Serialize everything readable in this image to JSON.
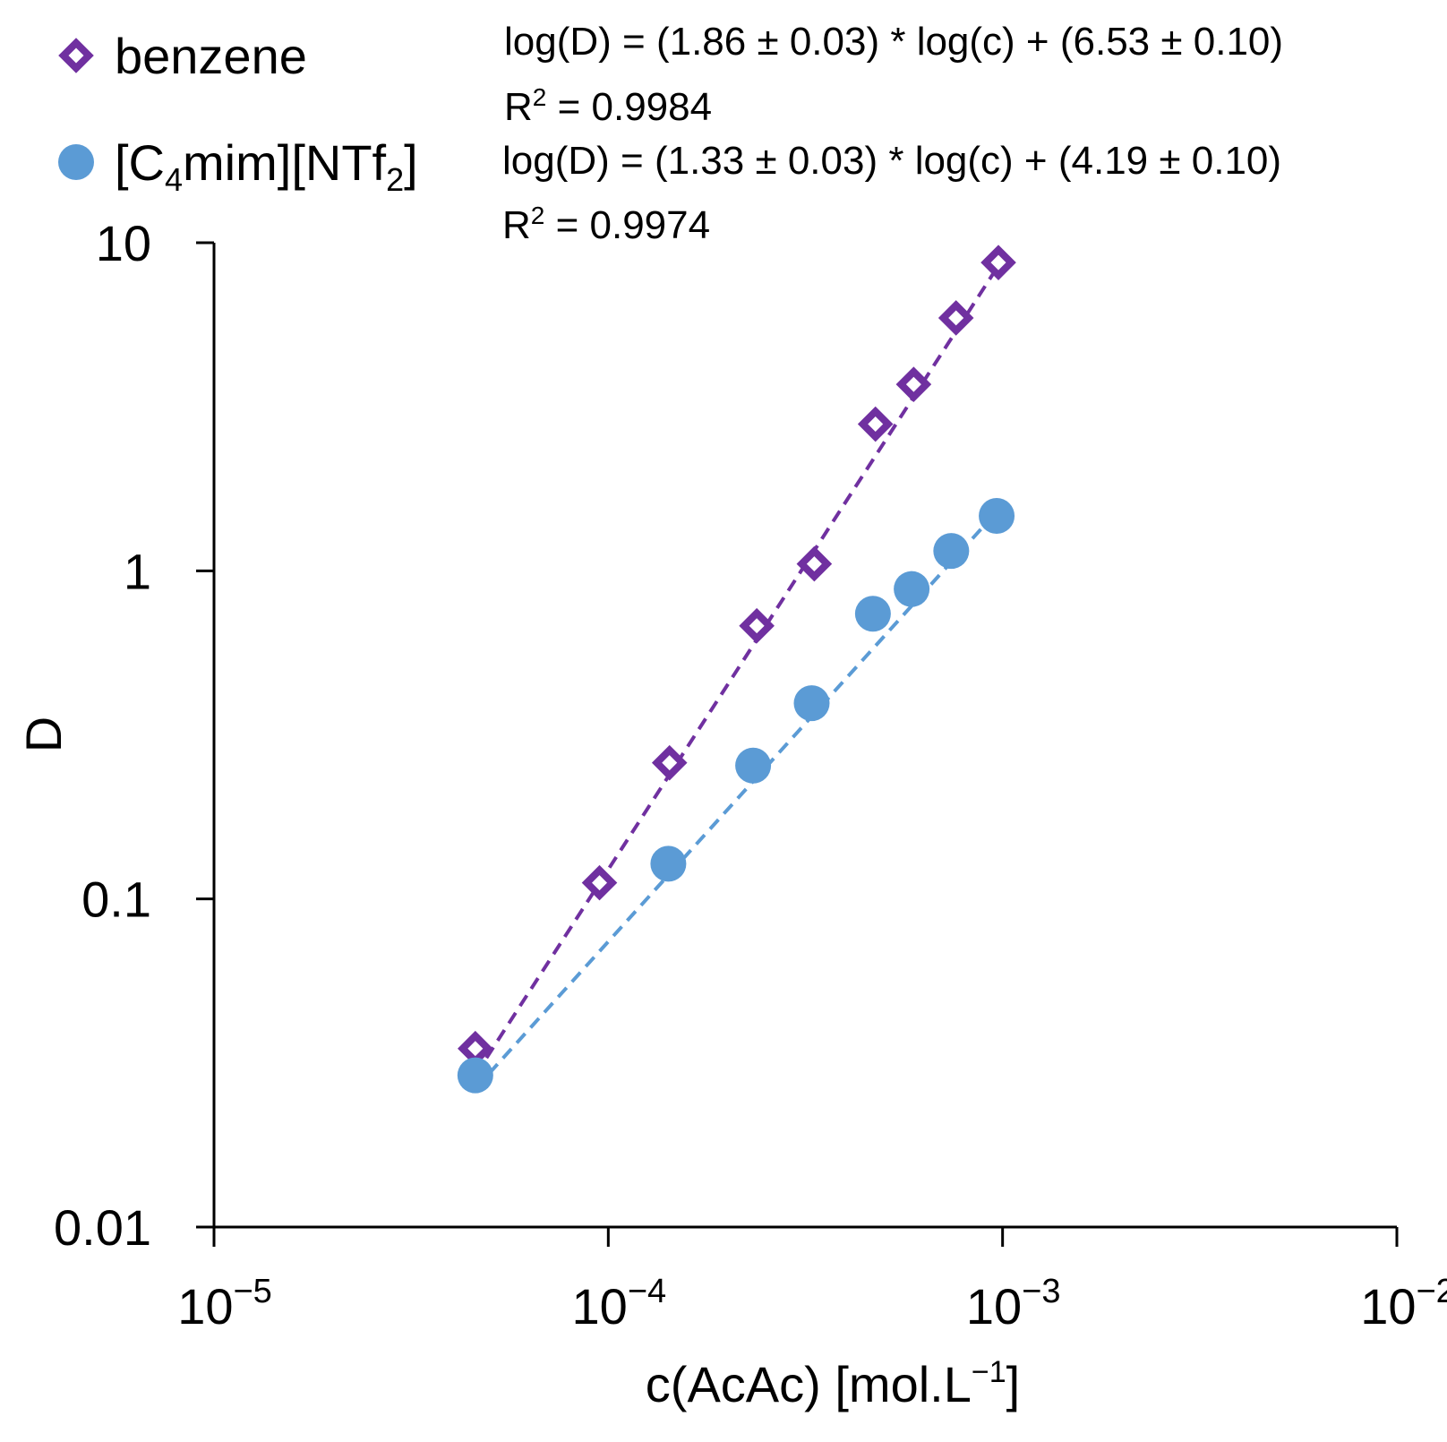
{
  "chart_data": {
    "type": "scatter",
    "xscale": "log",
    "yscale": "log",
    "xlabel": "c(AcAc) [mol.L",
    "xlabel_sup": "−1",
    "xlabel_end": "]",
    "ylabel": "D",
    "xlim": [
      1e-05,
      0.01
    ],
    "ylim": [
      0.01,
      10
    ],
    "x_ticks": [
      {
        "value": 1e-05,
        "base": "10",
        "exp": "−5"
      },
      {
        "value": 0.0001,
        "base": "10",
        "exp": "−4"
      },
      {
        "value": 0.001,
        "base": "10",
        "exp": "−3"
      },
      {
        "value": 0.01,
        "base": "10",
        "exp": "−2"
      }
    ],
    "y_ticks": [
      {
        "value": 0.01,
        "label": "0.01"
      },
      {
        "value": 0.1,
        "label": "0.1"
      },
      {
        "value": 1,
        "label": "1"
      },
      {
        "value": 10,
        "label": "10"
      }
    ],
    "series": [
      {
        "name": "benzene",
        "marker": "diamond-open",
        "color": "#7030A0",
        "x": [
          4.6e-05,
          9.5e-05,
          0.000143,
          0.000238,
          0.000333,
          0.000476,
          0.000595,
          0.000762,
          0.000976
        ],
        "y": [
          0.035,
          0.112,
          0.26,
          0.68,
          1.05,
          2.8,
          3.7,
          5.9,
          8.7
        ],
        "fit": {
          "slope": 1.86,
          "intercept": 6.53,
          "x_range": [
            4.6e-05,
            0.000976
          ]
        },
        "equation": "log(D) = (1.86 ± 0.03)  * log(c) + (6.53 ± 0.10)",
        "r2_label": "R",
        "r2_sup": "2",
        "r2_value": " = 0.9984"
      },
      {
        "name_parts": [
          "[C",
          "4",
          "mim][NTf",
          "2",
          "]"
        ],
        "marker": "circle",
        "color": "#5B9BD5",
        "x": [
          4.6e-05,
          0.000142,
          0.000233,
          0.000328,
          0.000469,
          0.000588,
          0.000741,
          0.000966
        ],
        "y": [
          0.029,
          0.128,
          0.255,
          0.395,
          0.74,
          0.88,
          1.15,
          1.47
        ],
        "fit": {
          "slope": 1.33,
          "intercept": 4.19,
          "x_range": [
            4.6e-05,
            0.000966
          ]
        },
        "equation": "log(D) = (1.33 ± 0.03)  * log(c) + (4.19 ± 0.10)",
        "r2_label": "R",
        "r2_sup": "2",
        "r2_value": " = 0.9974"
      }
    ]
  }
}
